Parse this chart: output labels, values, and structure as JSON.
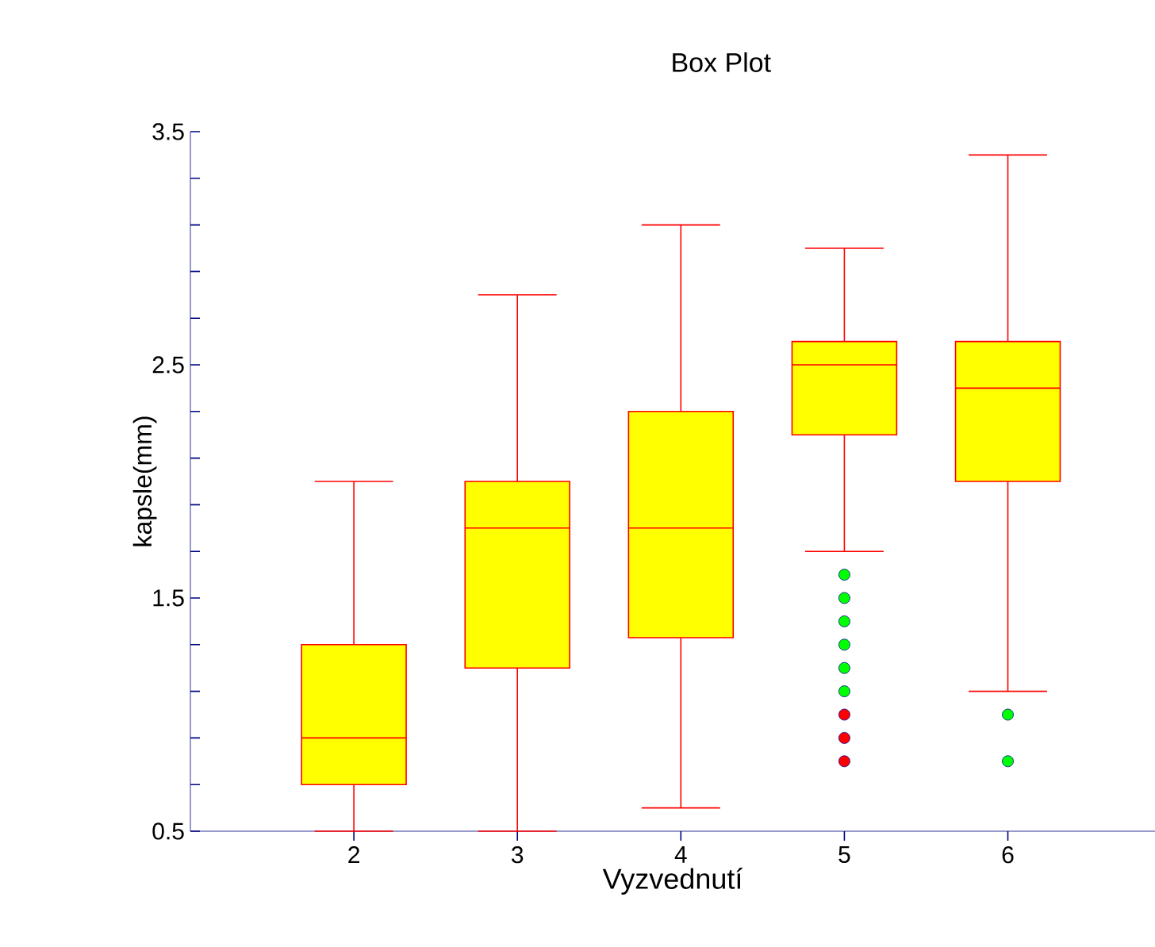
{
  "chart_data": {
    "type": "box",
    "title": "Box Plot",
    "xlabel": "Vyzvednutí",
    "ylabel": "kapsle(mm)",
    "categories": [
      "2",
      "3",
      "4",
      "5",
      "6"
    ],
    "ylim": [
      0.5,
      3.5
    ],
    "yticks": [
      0.5,
      {
        "value": 0.7,
        "label": null
      },
      {
        "value": 0.9,
        "label": null
      },
      {
        "value": 1.1,
        "label": null
      },
      {
        "value": 1.3,
        "label": null
      },
      1.5,
      {
        "value": 1.7,
        "label": null
      },
      {
        "value": 1.9,
        "label": null
      },
      {
        "value": 2.1,
        "label": null
      },
      {
        "value": 2.3,
        "label": null
      },
      2.5,
      {
        "value": 2.7,
        "label": null
      },
      {
        "value": 2.9,
        "label": null
      },
      {
        "value": 3.1,
        "label": null
      },
      {
        "value": 3.3,
        "label": null
      },
      3.5
    ],
    "series": [
      {
        "color": "#ffff00",
        "boxes": [
          {
            "low": 0.5,
            "q1": 0.7,
            "median": 0.9,
            "q3": 1.3,
            "high": 2.0
          },
          {
            "low": 0.5,
            "q1": 1.2,
            "median": 1.8,
            "q3": 2.0,
            "high": 2.8
          },
          {
            "low": 0.6,
            "q1": 1.33,
            "median": 1.8,
            "q3": 2.3,
            "high": 3.1
          },
          {
            "low": 1.7,
            "q1": 2.2,
            "median": 2.5,
            "q3": 2.6,
            "high": 3.0,
            "outliers": [
              1.6,
              1.5,
              1.4,
              1.3,
              1.2,
              1.1
            ]
          },
          {
            "low": 1.1,
            "q1": 2.0,
            "median": 2.4,
            "q3": 2.6,
            "high": 3.4,
            "outliers": [
              1.0,
              0.8
            ]
          }
        ]
      },
      {
        "type": "scatter",
        "color": "#ff0000",
        "x": [
          "5",
          "5",
          "5"
        ],
        "values": [
          1.0,
          0.9,
          0.8
        ]
      }
    ]
  }
}
